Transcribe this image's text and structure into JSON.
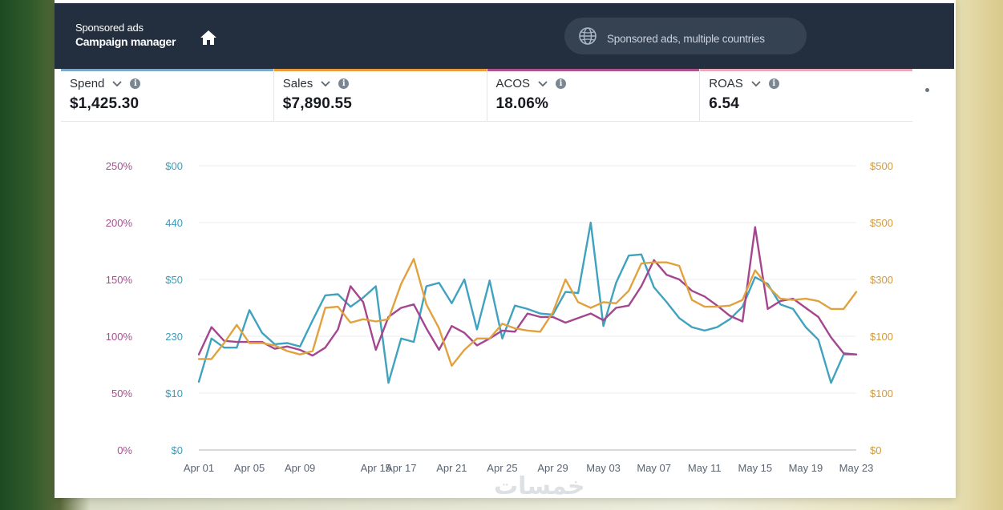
{
  "header": {
    "line1": "Sponsored ads",
    "line2": "Campaign manager",
    "country_selector": "Sponsored ads, multiple countries"
  },
  "metrics": [
    {
      "label": "Spend",
      "value": "$1,425.30",
      "stripe_color": "#7ea7c8"
    },
    {
      "label": "Sales",
      "value": "$7,890.55",
      "stripe_color": "#e89a3c"
    },
    {
      "label": "ACOS",
      "value": "18.06%",
      "stripe_color": "#b0518f"
    },
    {
      "label": "ROAS",
      "value": "6.54",
      "stripe_color": "#e9a7b8"
    }
  ],
  "icons": {
    "home": "home-icon",
    "globe": "globe-icon",
    "dropdown": "chevron-down-icon",
    "info": "info-icon"
  },
  "watermark": "خمسات",
  "chart_data": {
    "type": "line",
    "x": [
      "Apr 01",
      "Apr 02",
      "Apr 03",
      "Apr 04",
      "Apr 05",
      "Apr 06",
      "Apr 07",
      "Apr 08",
      "Apr 09",
      "Apr 10",
      "Apr 11",
      "Apr 12",
      "Apr 13",
      "Apr 14",
      "Apr 15",
      "Apr 16",
      "Apr 17",
      "Apr 18",
      "Apr 19",
      "Apr 20",
      "Apr 21",
      "Apr 22",
      "Apr 23",
      "Apr 24",
      "Apr 25",
      "Apr 26",
      "Apr 27",
      "Apr 28",
      "Apr 29",
      "Apr 30",
      "May 01",
      "May 02",
      "May 03",
      "May 04",
      "May 05",
      "May 06",
      "May 07",
      "May 08",
      "May 09",
      "May 10",
      "May 11",
      "May 12",
      "May 13",
      "May 14",
      "May 15",
      "May 16",
      "May 17",
      "May 18",
      "May 19",
      "May 20",
      "May 21",
      "May 22",
      "May 23"
    ],
    "x_tick_labels": [
      "Apr 01",
      "Apr 05",
      "Apr 09",
      "Apr 15",
      "Apr 17",
      "Apr 21",
      "Apr 25",
      "Apr 29",
      "May 03",
      "May 07",
      "May 11",
      "May 15",
      "May 19",
      "May 23"
    ],
    "left_axis_pct_ticks": [
      "0%",
      "50%",
      "100%",
      "150%",
      "200%",
      "250%"
    ],
    "left_axis_usd_ticks": [
      "$0",
      "$10",
      "230",
      "$50",
      "440",
      "$00"
    ],
    "right_axis_ticks": [
      "$0",
      "$100",
      "$100",
      "$300",
      "$500",
      "$500"
    ],
    "ylim": [
      0,
      250
    ],
    "grid": true,
    "legend": "none",
    "series": [
      {
        "color": "#3fa2bf",
        "values": [
          60,
          98,
          90,
          90,
          123,
          103,
          93,
          94,
          91,
          114,
          136,
          137,
          126,
          134,
          144,
          59,
          98,
          95,
          144,
          147,
          129,
          150,
          106,
          149,
          98,
          127,
          124,
          120,
          119,
          139,
          138,
          200,
          109,
          147,
          171,
          172,
          143,
          130,
          116,
          108,
          105,
          108,
          115,
          126,
          152,
          146,
          128,
          124,
          108,
          97,
          59,
          84,
          84
        ]
      },
      {
        "color": "#a3468f",
        "values": [
          84,
          108,
          96,
          95,
          95,
          95,
          89,
          91,
          88,
          83,
          90,
          106,
          144,
          130,
          88,
          117,
          125,
          128,
          107,
          88,
          109,
          103,
          92,
          98,
          105,
          104,
          120,
          117,
          117,
          112,
          116,
          120,
          114,
          125,
          127,
          144,
          167,
          154,
          150,
          140,
          135,
          127,
          118,
          113,
          196,
          124,
          131,
          133,
          125,
          117,
          99,
          85,
          84
        ]
      },
      {
        "color": "#e0a23f",
        "values": [
          80,
          80,
          94,
          110,
          94,
          94,
          92,
          87,
          84,
          87,
          125,
          126,
          112,
          115,
          113,
          115,
          146,
          168,
          128,
          107,
          74,
          88,
          98,
          98,
          111,
          107,
          105,
          104,
          121,
          150,
          130,
          125,
          130,
          129,
          140,
          164,
          165,
          165,
          162,
          132,
          126,
          126,
          127,
          132,
          158,
          144,
          133,
          132,
          133,
          131,
          124,
          124,
          139
        ]
      }
    ]
  }
}
